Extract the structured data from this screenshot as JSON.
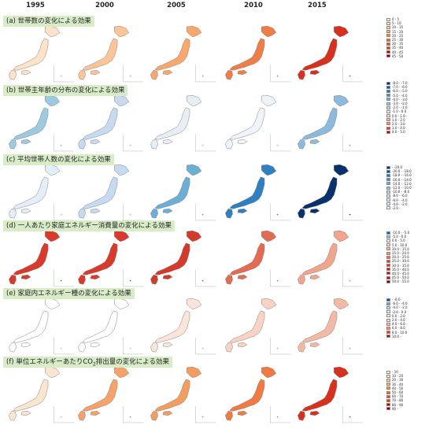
{
  "years": [
    "1995",
    "2000",
    "2005",
    "2010",
    "2015"
  ],
  "panels": [
    {
      "title": "(a) 世帯数の変化による効果",
      "legend": [
        "0 - 5",
        "5 - 10",
        "10 - 15",
        "15 - 20",
        "20 - 25",
        "25 - 30",
        "30 - 35",
        "35 - 40",
        "40 - 45",
        "45 - 50"
      ],
      "legend_colors": [
        "#fff5eb",
        "#fee6ce",
        "#fdd0a2",
        "#fdae6b",
        "#fd8d3c",
        "#f16913",
        "#e34a33",
        "#d94801",
        "#b30000",
        "#7f0000"
      ],
      "map_colors": [
        "#fde3c8",
        "#fcc597",
        "#f9a76a",
        "#f07d45",
        "#d7301f"
      ]
    },
    {
      "title": "(b) 世帯主年齢の分布の変化による効果",
      "legend": [
        "-8.0 - -7.0",
        "-7.0 - -6.0",
        "-6.0 - -5.0",
        "-5.0 - -4.0",
        "-4.0 - -3.0",
        "-3.0 - -2.0",
        "-2.0 - -1.0",
        "-1.0 - 0.0",
        "0.0 - 1.0",
        "1.0 - 2.0",
        "2.0 - 3.0",
        "3.0 - 4.0",
        "4.0 - 5.0"
      ],
      "legend_colors": [
        "#08306b",
        "#08519c",
        "#2171b5",
        "#4292c6",
        "#6baed6",
        "#9ecae1",
        "#c6dbef",
        "#eef4fa",
        "#fee0d2",
        "#fcbba1",
        "#fc9272",
        "#ef3b2c",
        "#a50f15"
      ],
      "map_colors": [
        "#9ecae1",
        "#c6dbef",
        "#e8eef5",
        "#eef4fa",
        "#8cb9dc"
      ]
    },
    {
      "title": "(c) 平均世帯人数の変化による効果",
      "legend": [
        "- -20.0",
        "-20.0 - -18.0",
        "-18.0 - -16.0",
        "-16.0 - -14.0",
        "-14.0 - -12.0",
        "-12.0 - -10.0",
        "-10.0 - -8.0",
        "-8.0 - -6.0",
        "-6.0 - -4.0",
        "-4.0 - -2.0",
        "-2.0 -"
      ],
      "legend_colors": [
        "#08306b",
        "#08519c",
        "#2171b5",
        "#4292c6",
        "#6baed6",
        "#9ecae1",
        "#c6dbef",
        "#deebf7",
        "#eef4fa",
        "#f5f9fd",
        "#ffffff"
      ],
      "map_colors": [
        "#e4eef8",
        "#c6dbef",
        "#6baed6",
        "#2f7fc1",
        "#08306b"
      ]
    },
    {
      "title": "(d) 一人あたり家庭エネルギー消費量の変化による効果",
      "legend": [
        "-10.0 - -5.0",
        "-5.0 - 0.0",
        "0.0 - 5.0",
        "5.0 - 10.0",
        "10.0 - 15.0",
        "15.0 - 20.0",
        "20.0 - 25.0",
        "25.0 - 30.0",
        "30.0 - 35.0",
        "35.0 - 40.0",
        "40.0 - 45.0",
        "45.0 - 50.0",
        "50.0 - 55.0"
      ],
      "legend_colors": [
        "#2166ac",
        "#92c5de",
        "#fff5f0",
        "#fee0d2",
        "#fcbba1",
        "#fc9272",
        "#fb6a4a",
        "#ef3b2c",
        "#e03326",
        "#cb181d",
        "#b21218",
        "#a50f15",
        "#67000d"
      ],
      "map_colors": [
        "#d93a2b",
        "#d93a2b",
        "#d43a2c",
        "#e46a52",
        "#f2a48c"
      ]
    },
    {
      "title": "(e) 家庭内エネルギー種の変化による効果",
      "legend": [
        "- -6.0",
        "-6.0 - -4.0",
        "-4.0 - -2.0",
        "-2.0 - 0.0",
        "0.0 - 2.0",
        "2.0 - 4.0",
        "4.0 - 6.0",
        "6.0 - 8.0",
        "8.0 - 10.0",
        "10.0 -"
      ],
      "legend_colors": [
        "#08519c",
        "#6baed6",
        "#c6dbef",
        "#f2f2f2",
        "#ffffff",
        "#fee0d2",
        "#fcbba1",
        "#fc9272",
        "#ef3b2c",
        "#a50f15"
      ],
      "map_colors": [
        "#ffffff",
        "#ffffff",
        "#fbe4da",
        "#f8d2c2",
        "#f2b9a4"
      ]
    },
    {
      "title_main": "(f) 単位エネルギーあたりCO",
      "title_sub": "2",
      "title_tail": "排出量の変化による効果",
      "legend": [
        "- 10",
        "10 - 20",
        "20 - 30",
        "30 - 40",
        "40 - 50",
        "50 - 60",
        "60 - 70",
        "70 - 80",
        "80 - 90",
        "90 -"
      ],
      "legend_colors": [
        "#fff5eb",
        "#fee6ce",
        "#fdd0a2",
        "#fdae6b",
        "#fd8d3c",
        "#f16913",
        "#e34a33",
        "#d94801",
        "#b30000",
        "#7f0000"
      ],
      "map_colors": [
        "#fde6d0",
        "#f6a26a",
        "#f49d62",
        "#f07a41",
        "#d7301f"
      ]
    }
  ]
}
